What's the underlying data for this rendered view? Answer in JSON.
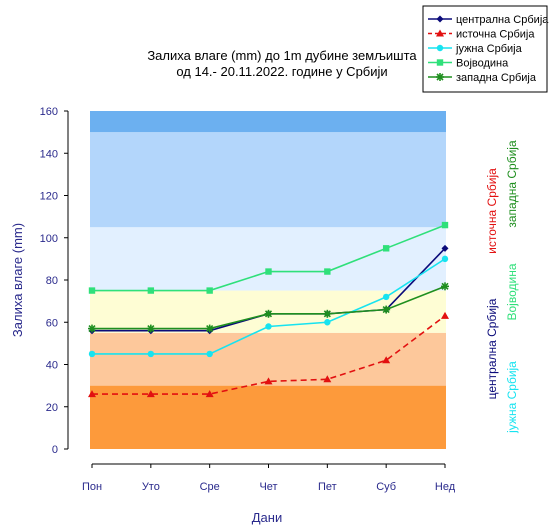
{
  "chart_data": {
    "type": "line",
    "title_line1": "Залиха влаге (mm) до 1m дубине земљишта",
    "title_line2": "од 14.- 20.11.2022. године у Србији",
    "xlabel": "Дани",
    "ylabel": "Залиха влаге (mm)",
    "categories": [
      "Пон",
      "Уто",
      "Сре",
      "Чет",
      "Пет",
      "Суб",
      "Нед"
    ],
    "ylim": [
      -5,
      165
    ],
    "yticks": [
      "0",
      "20",
      "40",
      "60",
      "80",
      "100",
      "120",
      "140",
      "160"
    ],
    "ytick_values": [
      0,
      20,
      40,
      60,
      80,
      100,
      120,
      140,
      160
    ],
    "bands": [
      {
        "from": 0,
        "to": 30,
        "color": "#fd9a3b"
      },
      {
        "from": 30,
        "to": 55,
        "color": "#fdc89b"
      },
      {
        "from": 55,
        "to": 75,
        "color": "#fefdd4"
      },
      {
        "from": 75,
        "to": 105,
        "color": "#e2f0ff"
      },
      {
        "from": 105,
        "to": 150,
        "color": "#b3d6fb"
      },
      {
        "from": 150,
        "to": 160,
        "color": "#6cb0f0"
      }
    ],
    "series": [
      {
        "name": "централна Србија",
        "color": "#0b0b7a",
        "marker": "diamond",
        "dash": "",
        "values": [
          56,
          56,
          56,
          64,
          64,
          66,
          95
        ]
      },
      {
        "name": "источна Србија",
        "color": "#e21010",
        "marker": "triangle",
        "dash": "6,4",
        "values": [
          26,
          26,
          26,
          32,
          33,
          42,
          63
        ]
      },
      {
        "name": "јужна Србија",
        "color": "#17e3f0",
        "marker": "circle",
        "dash": "",
        "values": [
          45,
          45,
          45,
          58,
          60,
          72,
          90
        ]
      },
      {
        "name": "Војводина",
        "color": "#2fe07a",
        "marker": "square",
        "dash": "",
        "values": [
          75,
          75,
          75,
          84,
          84,
          95,
          106
        ]
      },
      {
        "name": "западна Србија",
        "color": "#1f8f1f",
        "marker": "star",
        "dash": "",
        "values": [
          57,
          57,
          57,
          64,
          64,
          66,
          77
        ]
      }
    ],
    "right_labels": {
      "col1_top": "источна Србија",
      "col1_bottom_a": "централна Србија",
      "col1_bottom_b": "јужна Србија",
      "col2_top": "западна Србија",
      "col2_bottom": "Војводина"
    }
  }
}
